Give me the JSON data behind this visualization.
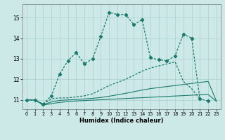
{
  "xlabel": "Humidex (Indice chaleur)",
  "background_color": "#cce9e7",
  "grid_color": "#aacfcc",
  "line_color": "#1a7a6e",
  "x_ticks": [
    0,
    1,
    2,
    3,
    4,
    5,
    6,
    7,
    8,
    9,
    10,
    11,
    12,
    13,
    14,
    15,
    16,
    17,
    18,
    19,
    20,
    21,
    22,
    23
  ],
  "y_ticks": [
    11,
    12,
    13,
    14,
    15
  ],
  "ylim": [
    10.55,
    15.65
  ],
  "xlim": [
    -0.5,
    23.5
  ],
  "series1_y": [
    11.0,
    11.0,
    10.8,
    11.2,
    12.25,
    12.9,
    13.3,
    12.75,
    13.0,
    14.1,
    15.25,
    15.15,
    15.15,
    14.65,
    14.9,
    13.05,
    12.95,
    12.9,
    13.15,
    14.2,
    14.0,
    11.05,
    10.95,
    null
  ],
  "series2_y": [
    11.0,
    11.0,
    10.8,
    11.05,
    11.1,
    11.1,
    11.15,
    11.2,
    11.3,
    11.5,
    11.7,
    11.85,
    12.0,
    12.2,
    12.4,
    12.55,
    12.65,
    12.75,
    12.85,
    11.9,
    11.55,
    11.05,
    null,
    null
  ],
  "series3_y": [
    11.0,
    11.0,
    10.78,
    10.9,
    10.98,
    11.0,
    11.02,
    11.05,
    11.08,
    11.12,
    11.18,
    11.25,
    11.32,
    11.4,
    11.48,
    11.55,
    11.6,
    11.65,
    11.7,
    11.75,
    11.8,
    11.85,
    11.9,
    10.95
  ],
  "series4_y": [
    11.0,
    11.0,
    10.75,
    10.82,
    10.88,
    10.92,
    10.95,
    10.97,
    10.99,
    11.01,
    11.03,
    11.05,
    11.07,
    11.09,
    11.11,
    11.13,
    11.15,
    11.17,
    11.19,
    11.21,
    11.23,
    11.25,
    11.27,
    10.93
  ]
}
